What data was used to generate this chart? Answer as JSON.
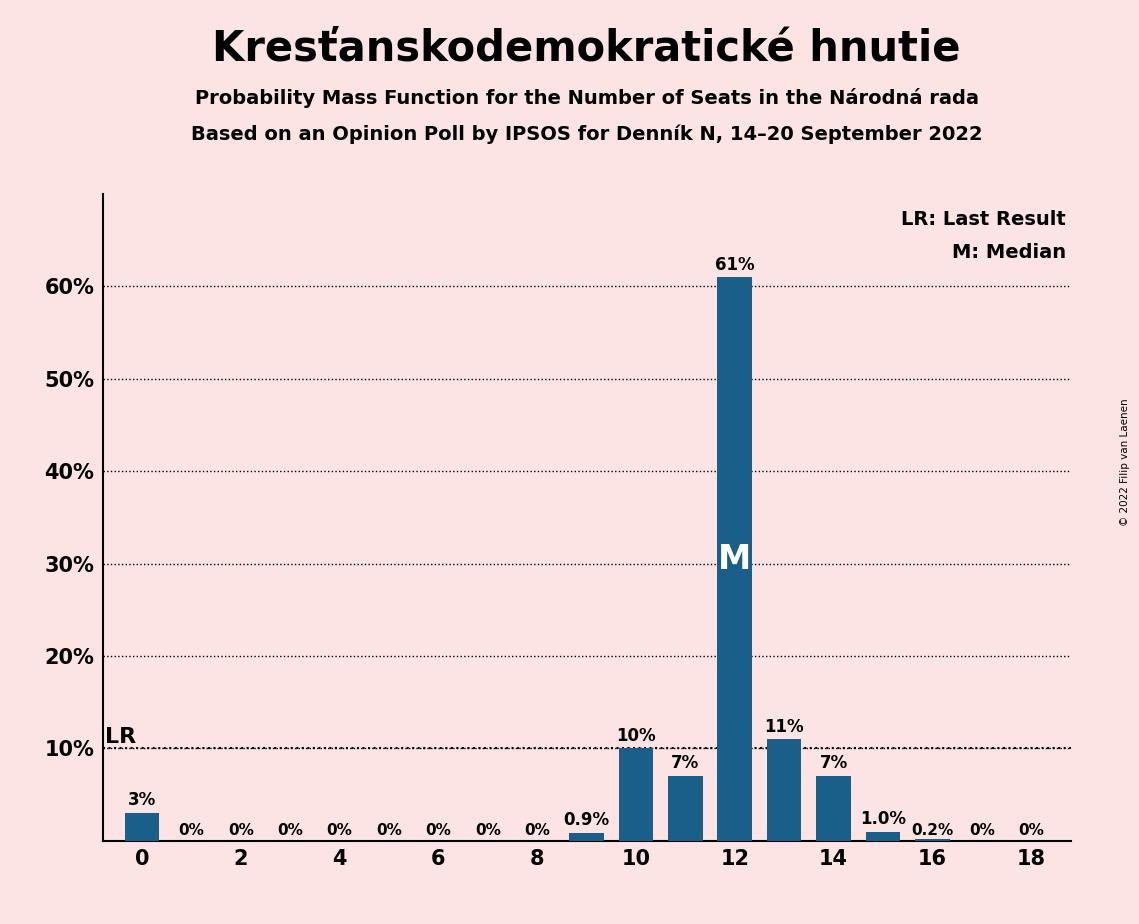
{
  "title": "Kresťanskodemokratické hnutie",
  "subtitle1": "Probability Mass Function for the Number of Seats in the Národná rada",
  "subtitle2": "Based on an Opinion Poll by IPSOS for Denník N, 14–20 September 2022",
  "copyright": "© 2022 Filip van Laenen",
  "seats": [
    0,
    1,
    2,
    3,
    4,
    5,
    6,
    7,
    8,
    9,
    10,
    11,
    12,
    13,
    14,
    15,
    16,
    17,
    18
  ],
  "probabilities": [
    0.03,
    0.0,
    0.0,
    0.0,
    0.0,
    0.0,
    0.0,
    0.0,
    0.0,
    0.009,
    0.1,
    0.07,
    0.61,
    0.11,
    0.07,
    0.01,
    0.002,
    0.0,
    0.0
  ],
  "labels": [
    "3%",
    "0%",
    "0%",
    "0%",
    "0%",
    "0%",
    "0%",
    "0%",
    "0%",
    "0.9%",
    "10%",
    "7%",
    "61%",
    "11%",
    "7%",
    "1.0%",
    "0.2%",
    "0%",
    "0%"
  ],
  "bar_color": "#1a5f8a",
  "background_color": "#fce4e4",
  "bar_width": 0.7,
  "ylim": [
    0,
    0.7
  ],
  "yticks": [
    0.0,
    0.1,
    0.2,
    0.3,
    0.4,
    0.5,
    0.6
  ],
  "ytick_labels": [
    "",
    "10%",
    "20%",
    "30%",
    "40%",
    "50%",
    "60%"
  ],
  "xticks": [
    0,
    2,
    4,
    6,
    8,
    10,
    12,
    14,
    16,
    18
  ],
  "lr_value": 0.1,
  "median_seat": 12,
  "legend_lr": "LR: Last Result",
  "legend_m": "M: Median",
  "lr_label": "LR",
  "m_label": "M"
}
